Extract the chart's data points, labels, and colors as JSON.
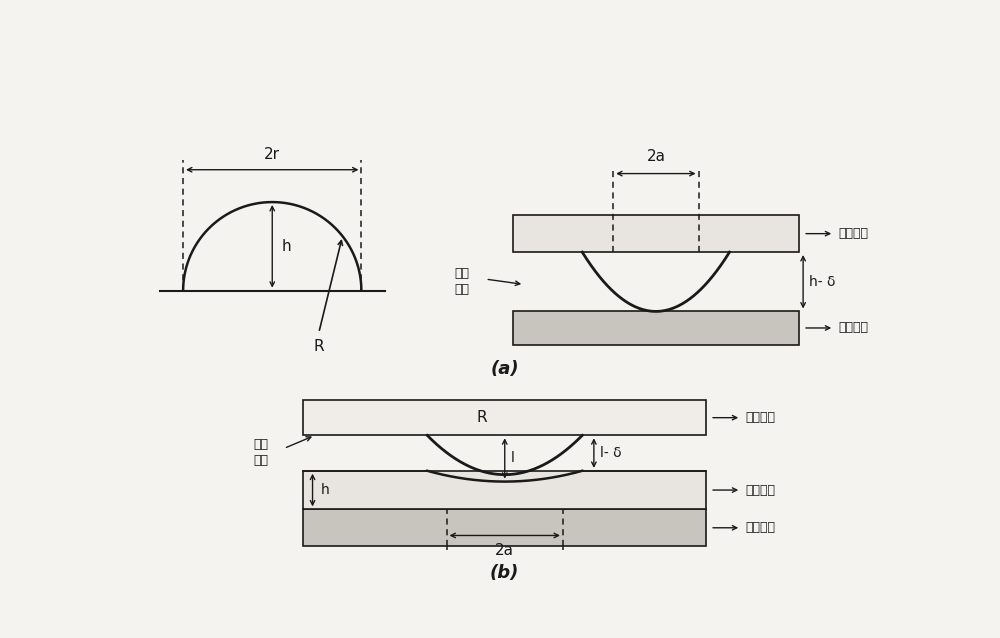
{
  "bg_color": "#f5f3f0",
  "lc": "#1a1a1a",
  "fill_light": "#e8e5e0",
  "fill_medium": "#c8c4be",
  "fill_dark": "#b0aca6",
  "label_2r": "2r",
  "label_2a": "2a",
  "label_h": "h",
  "label_h_delta": "h- δ",
  "label_l": "l",
  "label_l_delta": "l- δ",
  "label_R_left": "R",
  "label_R_bot": "R",
  "label_rigid_base_top": "刚性基底",
  "label_rigid_tray_top": "刚性托盘",
  "label_elastic_probe": "弹性\n探头",
  "label_rigid_probe_bot": "刚性\n探头",
  "label_elastic_film": "弹性藄膜",
  "label_rigid_base_bot": "刚性基底",
  "label_rigid_tray_bot": "刚性托盘",
  "label_a": "(a)",
  "label_b": "(b)",
  "fig_width": 10.0,
  "fig_height": 6.38,
  "dpi": 100
}
